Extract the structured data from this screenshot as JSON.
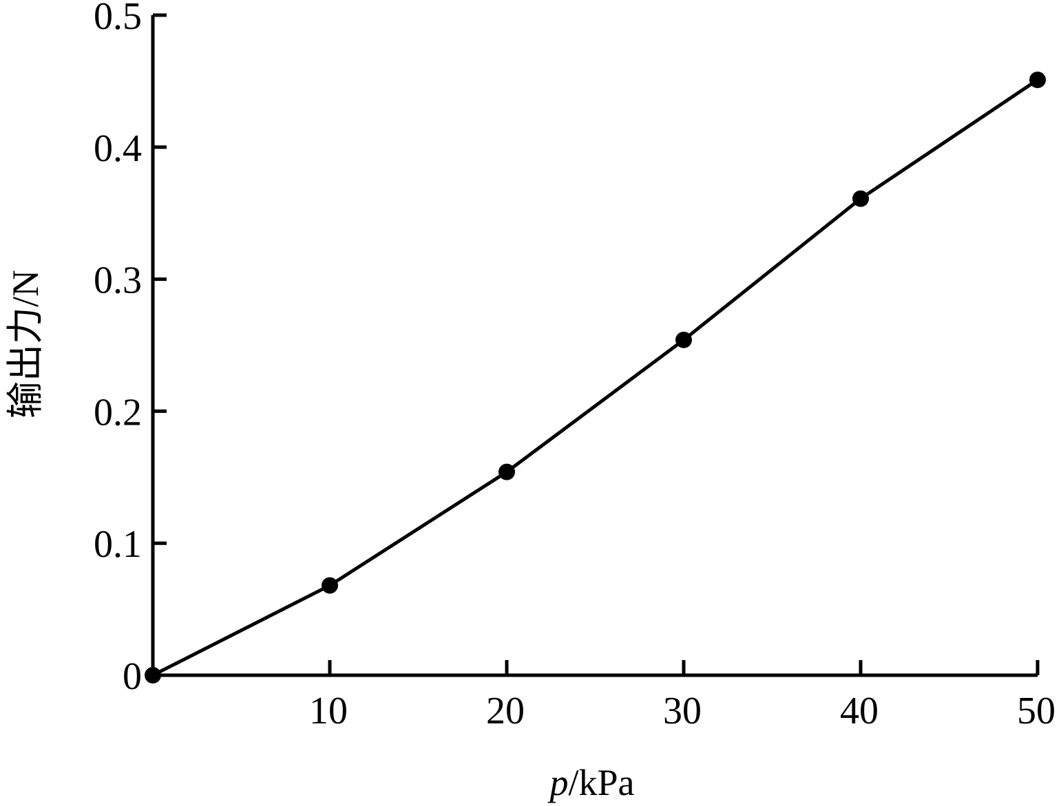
{
  "chart_data": {
    "type": "line",
    "title": "",
    "xlabel_var": "p",
    "xlabel_unit": "/kPa",
    "ylabel": "输出力/N",
    "xlim": [
      0,
      50
    ],
    "ylim": [
      0,
      0.5
    ],
    "x_ticks": [
      10,
      20,
      30,
      40,
      50
    ],
    "x_tick_labels": [
      "10",
      "20",
      "30",
      "40",
      "50"
    ],
    "y_ticks": [
      0,
      0.1,
      0.2,
      0.3,
      0.4,
      0.5
    ],
    "y_tick_labels": [
      "0",
      "0.1",
      "0.2",
      "0.3",
      "0.4",
      "0.5"
    ],
    "grid": false,
    "legend": false,
    "series": [
      {
        "x": [
          0,
          10,
          20,
          30,
          40,
          50
        ],
        "y": [
          0,
          0.068,
          0.154,
          0.254,
          0.361,
          0.451
        ],
        "color": "#000000",
        "marker": "circle"
      }
    ]
  }
}
